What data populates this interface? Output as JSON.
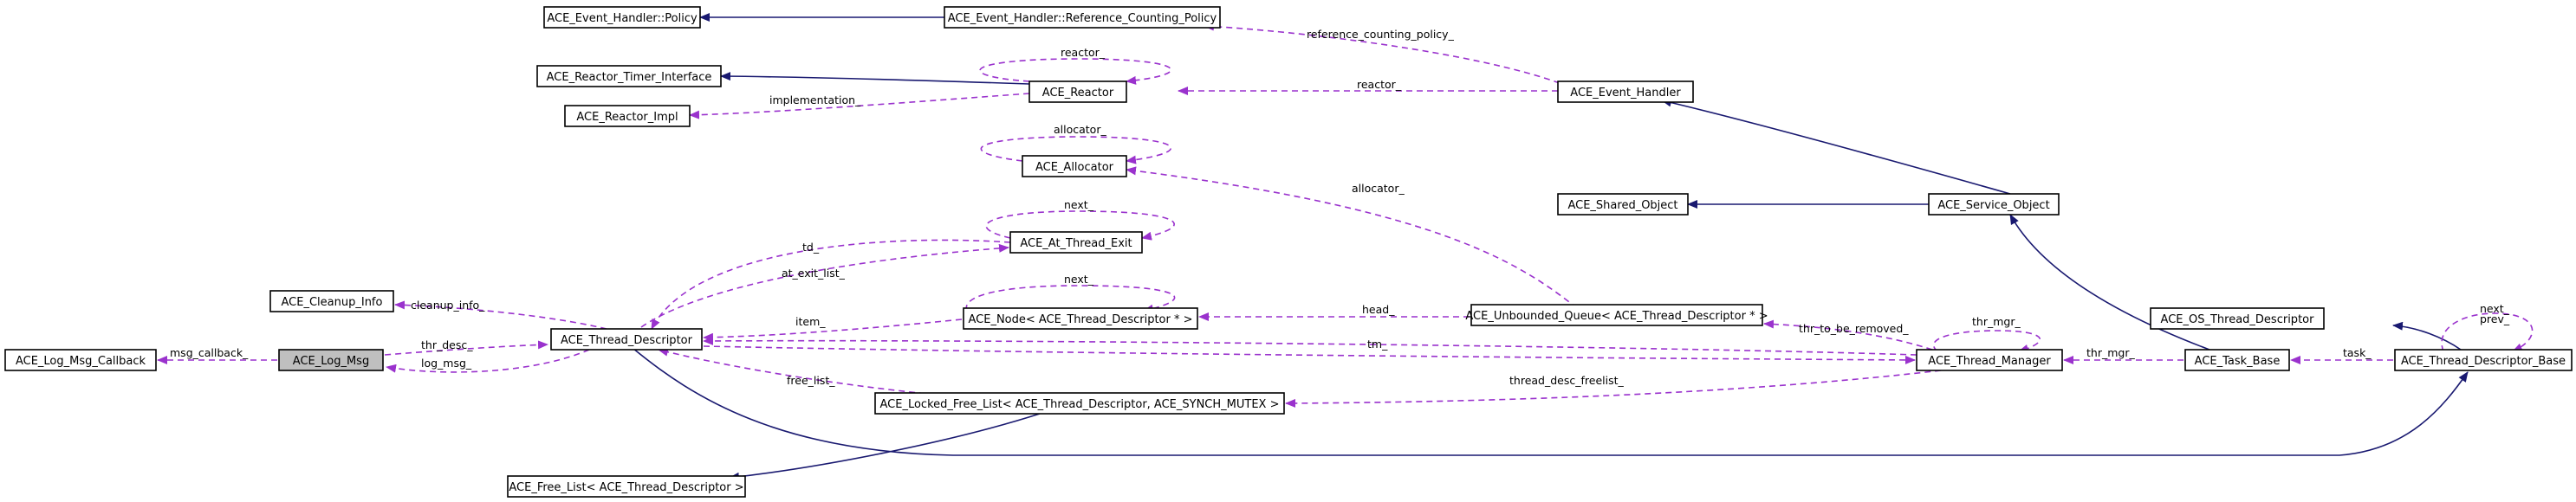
{
  "colors": {
    "inheritance": "#191970",
    "usage": "#9a32cd",
    "focus_fill": "#bfbfbf"
  },
  "nodes": {
    "policy": "ACE_Event_Handler::Policy",
    "refpolicy": "ACE_Event_Handler::Reference_Counting_Policy",
    "timer": "ACE_Reactor_Timer_Interface",
    "reactor": "ACE_Reactor",
    "reactor_impl": "ACE_Reactor_Impl",
    "event_handler": "ACE_Event_Handler",
    "allocator": "ACE_Allocator",
    "shared": "ACE_Shared_Object",
    "service": "ACE_Service_Object",
    "atexit": "ACE_At_Thread_Exit",
    "cleanup": "ACE_Cleanup_Info",
    "os_td": "ACE_OS_Thread_Descriptor",
    "log_cb": "ACE_Log_Msg_Callback",
    "log_msg": "ACE_Log_Msg",
    "td": "ACE_Thread_Descriptor",
    "node_td": "ACE_Node< ACE_Thread_Descriptor * >",
    "queue": "ACE_Unbounded_Queue< ACE_Thread_Descriptor * >",
    "thr_mgr": "ACE_Thread_Manager",
    "task_base": "ACE_Task_Base",
    "td_base": "ACE_Thread_Descriptor_Base",
    "locked_fl": "ACE_Locked_Free_List< ACE_Thread_Descriptor, ACE_SYNCH_MUTEX >",
    "free_list": "ACE_Free_List< ACE_Thread_Descriptor >"
  },
  "edge_labels": {
    "reference_counting_policy": "reference_counting_policy_",
    "reactor_self": "reactor_",
    "reactor": "reactor_",
    "implementation": "implementation_",
    "allocator_self": "allocator_",
    "allocator": "allocator_",
    "next_atexit": "next_",
    "td": "td_",
    "at_exit_list": "at_exit_list_",
    "next_node": "next_",
    "cleanup_info": "cleanup_info_",
    "msg_callback": "msg_callback_",
    "thr_desc": "thr_desc_",
    "log_msg": "log_msg_",
    "item": "item_",
    "head": "head_",
    "tm": "tm_",
    "thr_to_be_removed": "thr_to_be_removed_",
    "thr_mgr_self": "thr_mgr_",
    "thr_mgr": "thr_mgr_",
    "task": "task_",
    "next_base": "next_",
    "prev_base": "prev_",
    "free_list": "free_list_",
    "thread_desc_freelist": "thread_desc_freelist_"
  }
}
